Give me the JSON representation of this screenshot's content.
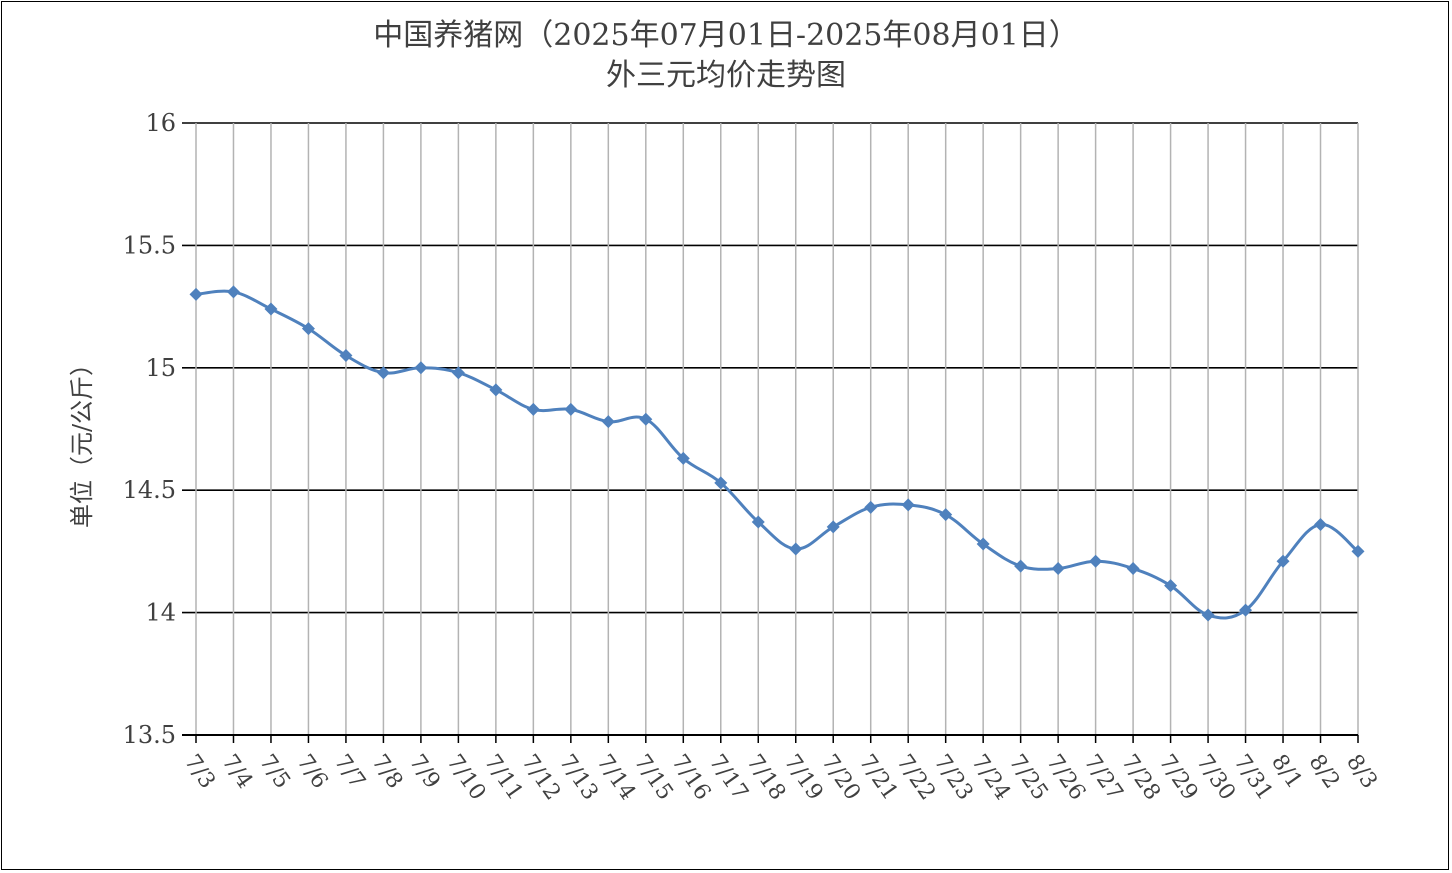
{
  "chart_data": {
    "type": "line",
    "title": "中国养猪网（2025年07月01日-2025年08月01日）",
    "subtitle": "外三元均价走势图",
    "xlabel": "",
    "ylabel": "单位（元/公斤）",
    "ylim": [
      13.5,
      16
    ],
    "yticks": [
      16,
      15.5,
      15,
      14.5,
      14,
      13.5
    ],
    "ytick_labels": [
      "16",
      "15.5",
      "15",
      "14.5",
      "14",
      "13.5"
    ],
    "grid": true,
    "legend": "none",
    "line_color": "#4f81bd",
    "categories": [
      "7/3",
      "7/4",
      "7/5",
      "7/6",
      "7/7",
      "7/8",
      "7/9",
      "7/10",
      "7/11",
      "7/12",
      "7/13",
      "7/14",
      "7/15",
      "7/16",
      "7/17",
      "7/18",
      "7/19",
      "7/20",
      "7/21",
      "7/22",
      "7/23",
      "7/24",
      "7/25",
      "7/26",
      "7/27",
      "7/28",
      "7/29",
      "7/30",
      "7/31",
      "8/1",
      "8/2",
      "8/3"
    ],
    "values": [
      15.3,
      15.31,
      15.24,
      15.16,
      15.05,
      14.98,
      15.0,
      14.98,
      14.91,
      14.83,
      14.83,
      14.78,
      14.79,
      14.63,
      14.53,
      14.37,
      14.26,
      14.35,
      14.43,
      14.44,
      14.4,
      14.28,
      14.19,
      14.18,
      14.21,
      14.18,
      14.11,
      13.99,
      14.01,
      14.21,
      14.36,
      14.25
    ]
  }
}
